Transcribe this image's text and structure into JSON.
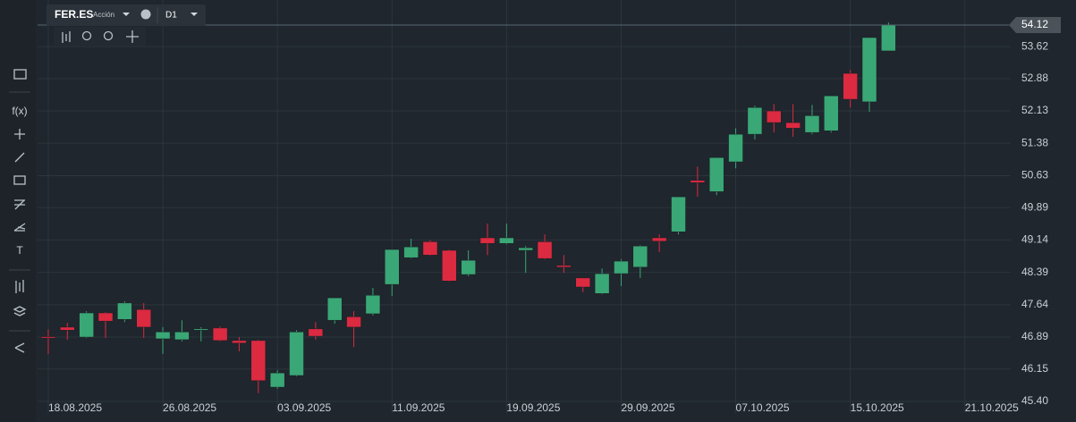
{
  "chart_data": {
    "type": "candlestick",
    "symbol": "FER.ES",
    "instrument_type": "Acción",
    "timeframe": "D1",
    "toolbar": {
      "function_icon": "f(x)",
      "text_icon": "T"
    },
    "open": [
      46.9,
      47.12,
      46.89,
      47.45,
      47.3,
      47.53,
      46.85,
      46.83,
      47.05,
      47.1,
      46.81,
      46.81,
      45.73,
      46.0,
      47.08,
      47.28,
      47.36,
      47.43,
      48.11,
      48.73,
      49.1,
      48.9,
      48.34,
      49.19,
      49.06,
      48.9,
      49.1,
      48.55,
      48.26,
      47.9,
      48.36,
      48.51,
      49.19,
      49.33,
      50.52,
      50.26,
      50.95,
      51.59,
      52.13,
      51.86,
      51.63,
      51.67,
      53.0,
      52.34,
      53.52
    ],
    "high": [
      47.07,
      47.22,
      47.49,
      47.47,
      47.72,
      47.68,
      47.12,
      47.28,
      47.12,
      47.14,
      46.89,
      46.83,
      46.12,
      47.05,
      47.24,
      47.8,
      47.49,
      48.03,
      48.92,
      49.17,
      49.14,
      48.92,
      48.9,
      49.52,
      49.52,
      49.0,
      49.27,
      48.79,
      48.26,
      48.48,
      48.69,
      49.02,
      49.27,
      50.14,
      50.84,
      51.05,
      51.73,
      52.25,
      52.29,
      52.29,
      52.27,
      52.48,
      53.08,
      53.83,
      54.18
    ],
    "low": [
      46.5,
      46.83,
      46.87,
      46.87,
      47.24,
      46.87,
      46.5,
      46.79,
      46.79,
      46.79,
      46.56,
      45.59,
      45.69,
      45.98,
      46.83,
      47.2,
      46.66,
      47.39,
      47.84,
      48.71,
      48.77,
      48.17,
      48.3,
      48.79,
      49.04,
      48.38,
      48.69,
      48.38,
      47.93,
      47.88,
      48.07,
      48.26,
      48.86,
      49.27,
      50.14,
      50.18,
      50.8,
      51.47,
      51.63,
      51.53,
      51.59,
      51.63,
      52.21,
      52.11,
      53.52
    ],
    "close": [
      46.88,
      47.05,
      47.45,
      47.26,
      47.68,
      47.12,
      47.01,
      47.01,
      47.08,
      46.81,
      46.75,
      45.88,
      46.06,
      47.01,
      46.91,
      47.8,
      47.12,
      47.86,
      48.92,
      48.98,
      48.79,
      48.19,
      48.67,
      49.06,
      49.19,
      48.96,
      48.71,
      48.51,
      48.05,
      48.36,
      48.65,
      49.0,
      49.11,
      50.14,
      50.47,
      51.05,
      51.59,
      52.21,
      51.86,
      51.73,
      52.02,
      52.48,
      52.4,
      53.83,
      54.12
    ],
    "up_color": "#3aa776",
    "down_color": "#dc2a41",
    "xlim": [
      -0.56,
      50.4
    ],
    "xticks": [
      {
        "value": 0,
        "label": "18.08.2025"
      },
      {
        "value": 6,
        "label": "26.08.2025"
      },
      {
        "value": 12,
        "label": "03.09.2025"
      },
      {
        "value": 18,
        "label": "11.09.2025"
      },
      {
        "value": 24,
        "label": "19.09.2025"
      },
      {
        "value": 30,
        "label": "29.09.2025"
      },
      {
        "value": 36,
        "label": "07.10.2025"
      },
      {
        "value": 42,
        "label": "15.10.2025"
      },
      {
        "value": 48,
        "label": "21.10.2025"
      }
    ],
    "ylim": [
      45.13,
      54.7
    ],
    "yticks": [
      {
        "value": 45.4,
        "label": "45.40"
      },
      46.15,
      46.89,
      47.64,
      48.39,
      49.14,
      49.89,
      50.63,
      51.38,
      52.13,
      52.88,
      53.62
    ],
    "last_price": 54.12,
    "grid": true
  }
}
